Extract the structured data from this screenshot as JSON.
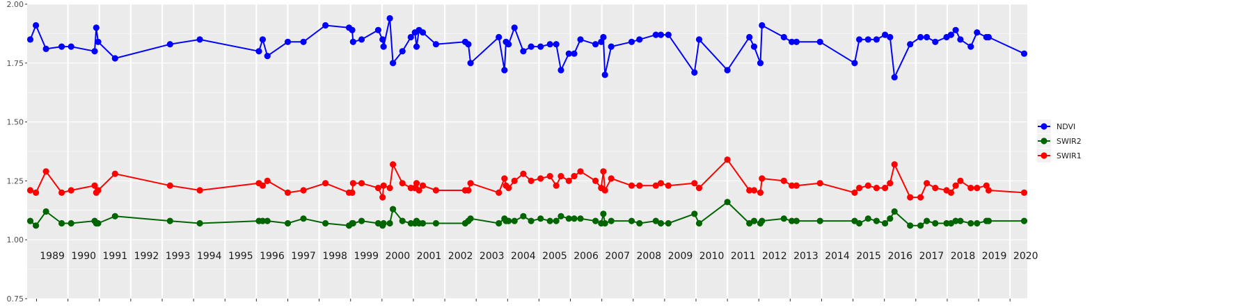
{
  "chart_data": {
    "type": "line",
    "title": "",
    "xlabel": "",
    "ylabel": "",
    "ylim": [
      0.75,
      2.0
    ],
    "y_ticks": [
      "0.75",
      "1.00",
      "1.25",
      "1.50",
      "1.75",
      "2.00"
    ],
    "xlim": [
      1988.7,
      2020.55
    ],
    "x_tick_labels": [
      "1989",
      "1990",
      "1991",
      "1992",
      "1993",
      "1994",
      "1995",
      "1996",
      "1997",
      "1998",
      "1999",
      "2000",
      "2001",
      "2002",
      "2003",
      "2004",
      "2005",
      "2006",
      "2007",
      "2008",
      "2009",
      "2010",
      "2011",
      "2012",
      "2013",
      "2014",
      "2015",
      "2016",
      "2017",
      "2018",
      "2019",
      "2020"
    ],
    "grid": true,
    "legend_position": "right",
    "series": [
      {
        "name": "NDVI",
        "color": "#0000ff",
        "points": [
          [
            1988.8,
            1.85
          ],
          [
            1988.98,
            1.91
          ],
          [
            1989.3,
            1.81
          ],
          [
            1989.8,
            1.82
          ],
          [
            1990.1,
            1.82
          ],
          [
            1990.85,
            1.8
          ],
          [
            1990.9,
            1.9
          ],
          [
            1990.96,
            1.84
          ],
          [
            1991.5,
            1.77
          ],
          [
            1993.25,
            1.83
          ],
          [
            1994.2,
            1.85
          ],
          [
            1996.08,
            1.8
          ],
          [
            1996.2,
            1.85
          ],
          [
            1996.35,
            1.78
          ],
          [
            1997.0,
            1.84
          ],
          [
            1997.5,
            1.84
          ],
          [
            1998.2,
            1.91
          ],
          [
            1998.95,
            1.9
          ],
          [
            1999.05,
            1.89
          ],
          [
            1999.08,
            1.84
          ],
          [
            1999.35,
            1.85
          ],
          [
            1999.88,
            1.89
          ],
          [
            2000.02,
            1.85
          ],
          [
            2000.05,
            1.82
          ],
          [
            2000.25,
            1.94
          ],
          [
            2000.35,
            1.75
          ],
          [
            2000.65,
            1.8
          ],
          [
            2000.92,
            1.86
          ],
          [
            2001.05,
            1.88
          ],
          [
            2001.1,
            1.82
          ],
          [
            2001.18,
            1.89
          ],
          [
            2001.3,
            1.88
          ],
          [
            2001.72,
            1.83
          ],
          [
            2002.65,
            1.84
          ],
          [
            2002.75,
            1.83
          ],
          [
            2002.82,
            1.75
          ],
          [
            2003.72,
            1.86
          ],
          [
            2003.9,
            1.72
          ],
          [
            2003.95,
            1.84
          ],
          [
            2004.03,
            1.83
          ],
          [
            2004.22,
            1.9
          ],
          [
            2004.5,
            1.8
          ],
          [
            2004.75,
            1.82
          ],
          [
            2005.05,
            1.82
          ],
          [
            2005.35,
            1.83
          ],
          [
            2005.55,
            1.83
          ],
          [
            2005.7,
            1.72
          ],
          [
            2005.95,
            1.79
          ],
          [
            2006.12,
            1.79
          ],
          [
            2006.32,
            1.85
          ],
          [
            2006.8,
            1.83
          ],
          [
            2006.98,
            1.84
          ],
          [
            2007.05,
            1.86
          ],
          [
            2007.1,
            1.7
          ],
          [
            2007.3,
            1.82
          ],
          [
            2007.95,
            1.84
          ],
          [
            2008.2,
            1.85
          ],
          [
            2008.72,
            1.87
          ],
          [
            2008.88,
            1.87
          ],
          [
            2009.12,
            1.87
          ],
          [
            2009.95,
            1.71
          ],
          [
            2010.1,
            1.85
          ],
          [
            2011.0,
            1.72
          ],
          [
            2011.7,
            1.86
          ],
          [
            2011.85,
            1.82
          ],
          [
            2012.05,
            1.75
          ],
          [
            2012.1,
            1.91
          ],
          [
            2012.8,
            1.86
          ],
          [
            2013.05,
            1.84
          ],
          [
            2013.2,
            1.84
          ],
          [
            2013.95,
            1.84
          ],
          [
            2015.05,
            1.75
          ],
          [
            2015.2,
            1.85
          ],
          [
            2015.48,
            1.85
          ],
          [
            2015.75,
            1.85
          ],
          [
            2016.02,
            1.87
          ],
          [
            2016.18,
            1.86
          ],
          [
            2016.32,
            1.69
          ],
          [
            2016.82,
            1.83
          ],
          [
            2017.15,
            1.86
          ],
          [
            2017.35,
            1.86
          ],
          [
            2017.62,
            1.84
          ],
          [
            2017.98,
            1.86
          ],
          [
            2018.12,
            1.87
          ],
          [
            2018.27,
            1.89
          ],
          [
            2018.42,
            1.85
          ],
          [
            2018.75,
            1.82
          ],
          [
            2018.95,
            1.88
          ],
          [
            2019.25,
            1.86
          ],
          [
            2019.32,
            1.86
          ],
          [
            2020.45,
            1.79
          ]
        ]
      },
      {
        "name": "SWIR2",
        "color": "#006400",
        "points": [
          [
            1988.8,
            1.08
          ],
          [
            1988.98,
            1.06
          ],
          [
            1989.3,
            1.12
          ],
          [
            1989.8,
            1.07
          ],
          [
            1990.1,
            1.07
          ],
          [
            1990.85,
            1.08
          ],
          [
            1990.9,
            1.07
          ],
          [
            1990.96,
            1.07
          ],
          [
            1991.5,
            1.1
          ],
          [
            1993.25,
            1.08
          ],
          [
            1994.2,
            1.07
          ],
          [
            1996.08,
            1.08
          ],
          [
            1996.2,
            1.08
          ],
          [
            1996.35,
            1.08
          ],
          [
            1997.0,
            1.07
          ],
          [
            1997.5,
            1.09
          ],
          [
            1998.2,
            1.07
          ],
          [
            1998.95,
            1.06
          ],
          [
            1999.05,
            1.07
          ],
          [
            1999.08,
            1.07
          ],
          [
            1999.35,
            1.08
          ],
          [
            1999.88,
            1.07
          ],
          [
            2000.02,
            1.06
          ],
          [
            2000.05,
            1.07
          ],
          [
            2000.25,
            1.07
          ],
          [
            2000.35,
            1.13
          ],
          [
            2000.65,
            1.08
          ],
          [
            2000.92,
            1.07
          ],
          [
            2001.05,
            1.07
          ],
          [
            2001.1,
            1.08
          ],
          [
            2001.18,
            1.07
          ],
          [
            2001.3,
            1.07
          ],
          [
            2001.72,
            1.07
          ],
          [
            2002.65,
            1.07
          ],
          [
            2002.75,
            1.08
          ],
          [
            2002.82,
            1.09
          ],
          [
            2003.72,
            1.07
          ],
          [
            2003.9,
            1.09
          ],
          [
            2003.95,
            1.08
          ],
          [
            2004.03,
            1.08
          ],
          [
            2004.22,
            1.08
          ],
          [
            2004.5,
            1.1
          ],
          [
            2004.75,
            1.08
          ],
          [
            2005.05,
            1.09
          ],
          [
            2005.35,
            1.08
          ],
          [
            2005.55,
            1.08
          ],
          [
            2005.7,
            1.1
          ],
          [
            2005.95,
            1.09
          ],
          [
            2006.12,
            1.09
          ],
          [
            2006.32,
            1.09
          ],
          [
            2006.8,
            1.08
          ],
          [
            2006.98,
            1.07
          ],
          [
            2007.05,
            1.11
          ],
          [
            2007.1,
            1.07
          ],
          [
            2007.3,
            1.08
          ],
          [
            2007.95,
            1.08
          ],
          [
            2008.2,
            1.07
          ],
          [
            2008.72,
            1.08
          ],
          [
            2008.88,
            1.07
          ],
          [
            2009.12,
            1.07
          ],
          [
            2009.95,
            1.11
          ],
          [
            2010.1,
            1.07
          ],
          [
            2011.0,
            1.16
          ],
          [
            2011.7,
            1.07
          ],
          [
            2011.85,
            1.08
          ],
          [
            2012.05,
            1.07
          ],
          [
            2012.1,
            1.08
          ],
          [
            2012.8,
            1.09
          ],
          [
            2013.05,
            1.08
          ],
          [
            2013.2,
            1.08
          ],
          [
            2013.95,
            1.08
          ],
          [
            2015.05,
            1.08
          ],
          [
            2015.2,
            1.07
          ],
          [
            2015.48,
            1.09
          ],
          [
            2015.75,
            1.08
          ],
          [
            2016.02,
            1.07
          ],
          [
            2016.18,
            1.09
          ],
          [
            2016.32,
            1.12
          ],
          [
            2016.82,
            1.06
          ],
          [
            2017.15,
            1.06
          ],
          [
            2017.35,
            1.08
          ],
          [
            2017.62,
            1.07
          ],
          [
            2017.98,
            1.07
          ],
          [
            2018.12,
            1.07
          ],
          [
            2018.27,
            1.08
          ],
          [
            2018.42,
            1.08
          ],
          [
            2018.75,
            1.07
          ],
          [
            2018.95,
            1.07
          ],
          [
            2019.25,
            1.08
          ],
          [
            2019.32,
            1.08
          ],
          [
            2020.45,
            1.08
          ]
        ]
      },
      {
        "name": "SWIR1",
        "color": "#ff0000",
        "points": [
          [
            1988.8,
            1.21
          ],
          [
            1988.98,
            1.2
          ],
          [
            1989.3,
            1.29
          ],
          [
            1989.8,
            1.2
          ],
          [
            1990.1,
            1.21
          ],
          [
            1990.85,
            1.23
          ],
          [
            1990.9,
            1.2
          ],
          [
            1990.96,
            1.21
          ],
          [
            1991.5,
            1.28
          ],
          [
            1993.25,
            1.23
          ],
          [
            1994.2,
            1.21
          ],
          [
            1996.08,
            1.24
          ],
          [
            1996.2,
            1.23
          ],
          [
            1996.35,
            1.25
          ],
          [
            1997.0,
            1.2
          ],
          [
            1997.5,
            1.21
          ],
          [
            1998.2,
            1.24
          ],
          [
            1998.95,
            1.2
          ],
          [
            1999.05,
            1.2
          ],
          [
            1999.08,
            1.24
          ],
          [
            1999.35,
            1.24
          ],
          [
            1999.88,
            1.22
          ],
          [
            2000.02,
            1.18
          ],
          [
            2000.05,
            1.23
          ],
          [
            2000.25,
            1.22
          ],
          [
            2000.35,
            1.32
          ],
          [
            2000.65,
            1.24
          ],
          [
            2000.92,
            1.22
          ],
          [
            2001.05,
            1.22
          ],
          [
            2001.1,
            1.24
          ],
          [
            2001.18,
            1.21
          ],
          [
            2001.3,
            1.23
          ],
          [
            2001.72,
            1.21
          ],
          [
            2002.65,
            1.21
          ],
          [
            2002.75,
            1.21
          ],
          [
            2002.82,
            1.24
          ],
          [
            2003.72,
            1.2
          ],
          [
            2003.9,
            1.26
          ],
          [
            2003.95,
            1.23
          ],
          [
            2004.03,
            1.22
          ],
          [
            2004.22,
            1.25
          ],
          [
            2004.5,
            1.28
          ],
          [
            2004.75,
            1.25
          ],
          [
            2005.05,
            1.26
          ],
          [
            2005.35,
            1.27
          ],
          [
            2005.55,
            1.23
          ],
          [
            2005.7,
            1.27
          ],
          [
            2005.95,
            1.25
          ],
          [
            2006.12,
            1.27
          ],
          [
            2006.32,
            1.29
          ],
          [
            2006.8,
            1.25
          ],
          [
            2006.98,
            1.22
          ],
          [
            2007.05,
            1.29
          ],
          [
            2007.1,
            1.21
          ],
          [
            2007.3,
            1.26
          ],
          [
            2007.95,
            1.23
          ],
          [
            2008.2,
            1.23
          ],
          [
            2008.72,
            1.23
          ],
          [
            2008.88,
            1.24
          ],
          [
            2009.12,
            1.23
          ],
          [
            2009.95,
            1.24
          ],
          [
            2010.1,
            1.22
          ],
          [
            2011.0,
            1.34
          ],
          [
            2011.7,
            1.21
          ],
          [
            2011.85,
            1.21
          ],
          [
            2012.05,
            1.2
          ],
          [
            2012.1,
            1.26
          ],
          [
            2012.8,
            1.25
          ],
          [
            2013.05,
            1.23
          ],
          [
            2013.2,
            1.23
          ],
          [
            2013.95,
            1.24
          ],
          [
            2015.05,
            1.2
          ],
          [
            2015.2,
            1.22
          ],
          [
            2015.48,
            1.23
          ],
          [
            2015.75,
            1.22
          ],
          [
            2016.02,
            1.22
          ],
          [
            2016.18,
            1.24
          ],
          [
            2016.32,
            1.32
          ],
          [
            2016.82,
            1.18
          ],
          [
            2017.15,
            1.18
          ],
          [
            2017.35,
            1.24
          ],
          [
            2017.62,
            1.22
          ],
          [
            2017.98,
            1.21
          ],
          [
            2018.12,
            1.2
          ],
          [
            2018.27,
            1.23
          ],
          [
            2018.42,
            1.25
          ],
          [
            2018.75,
            1.22
          ],
          [
            2018.95,
            1.22
          ],
          [
            2019.25,
            1.23
          ],
          [
            2019.32,
            1.21
          ],
          [
            2020.45,
            1.2
          ]
        ]
      }
    ]
  }
}
